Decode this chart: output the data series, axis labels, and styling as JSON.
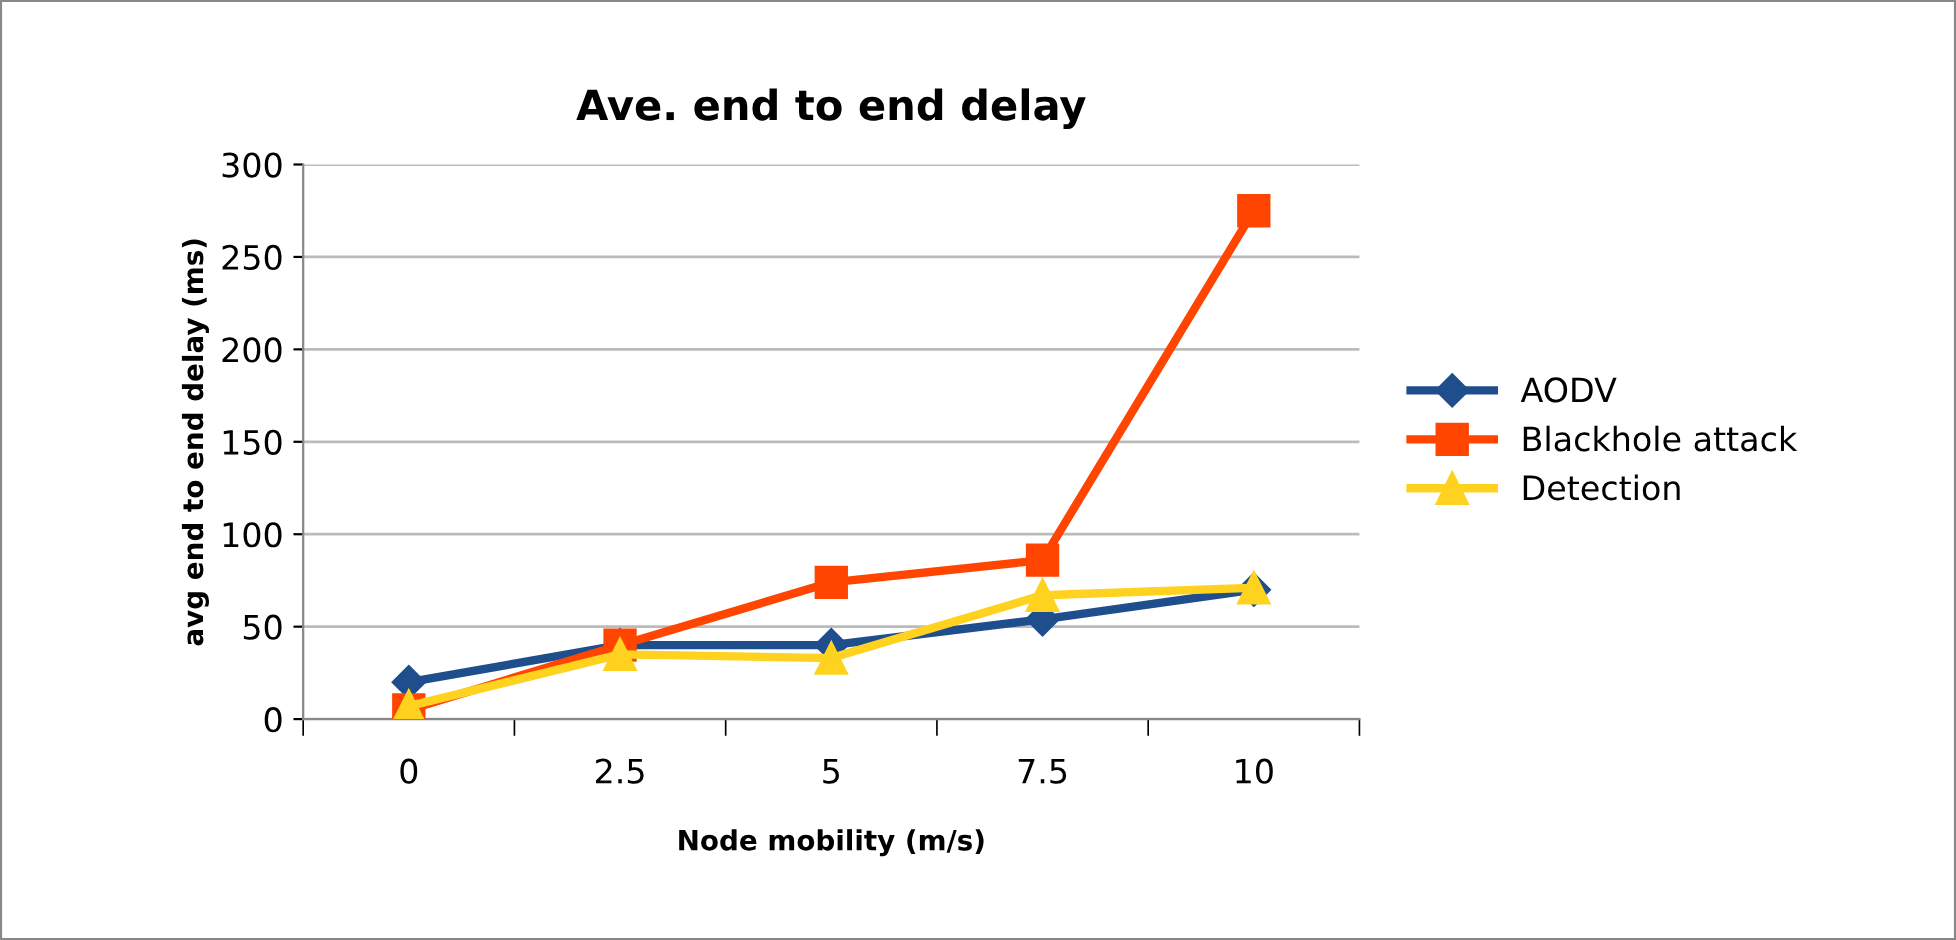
{
  "chart_data": {
    "type": "line",
    "title": "Ave. end to end delay",
    "xlabel": "Node mobility (m/s)",
    "ylabel": "avg end to end delay (ms)",
    "categories": [
      "0",
      "2.5",
      "5",
      "7.5",
      "10"
    ],
    "series": [
      {
        "name": "AODV",
        "color": "#1f4e8c",
        "marker": "diamond",
        "values": [
          20,
          40,
          40,
          54,
          70
        ]
      },
      {
        "name": "Blackhole attack",
        "color": "#ff4500",
        "marker": "square",
        "values": [
          5,
          40,
          74,
          86,
          275
        ]
      },
      {
        "name": "Detection",
        "color": "#ffd21f",
        "marker": "triangle",
        "values": [
          7,
          35,
          33,
          67,
          71
        ]
      }
    ],
    "ylim": [
      0,
      300
    ],
    "yticks": [
      0,
      50,
      100,
      150,
      200,
      250,
      300
    ],
    "grid": "y",
    "legend": "right",
    "line_style": "solid"
  }
}
